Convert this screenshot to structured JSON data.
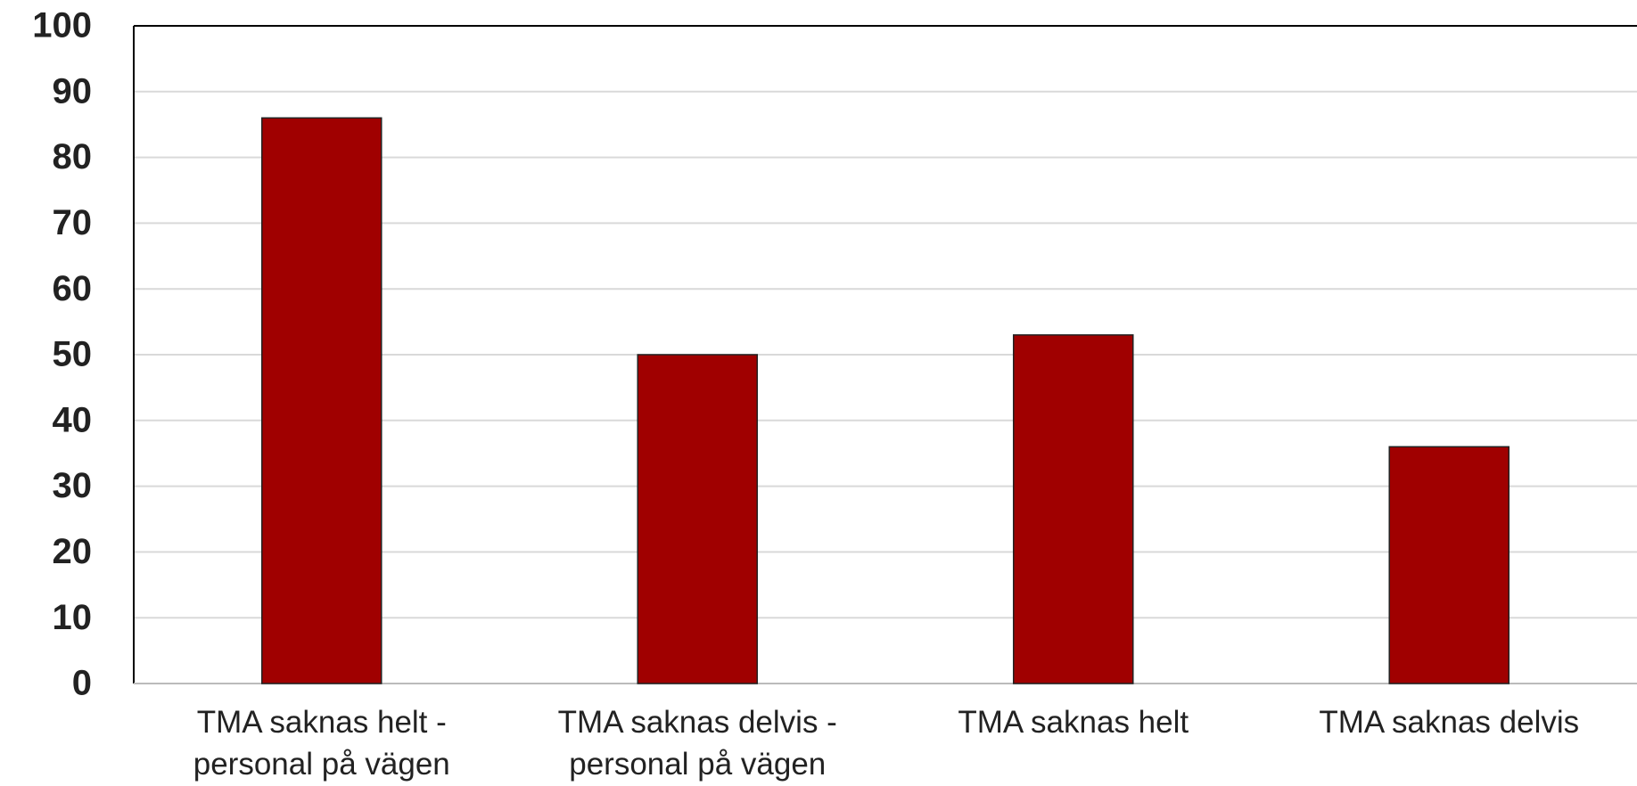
{
  "chart_data": {
    "type": "bar",
    "categories": [
      "TMA saknas helt - personal på vägen",
      "TMA saknas delvis - personal på vägen",
      "TMA saknas helt",
      "TMA saknas delvis"
    ],
    "values": [
      86,
      50,
      53,
      36
    ],
    "color": "#a00000",
    "ylim": [
      0,
      100
    ],
    "yticks": [
      0,
      10,
      20,
      30,
      40,
      50,
      60,
      70,
      80,
      90,
      100
    ],
    "grid": true
  }
}
